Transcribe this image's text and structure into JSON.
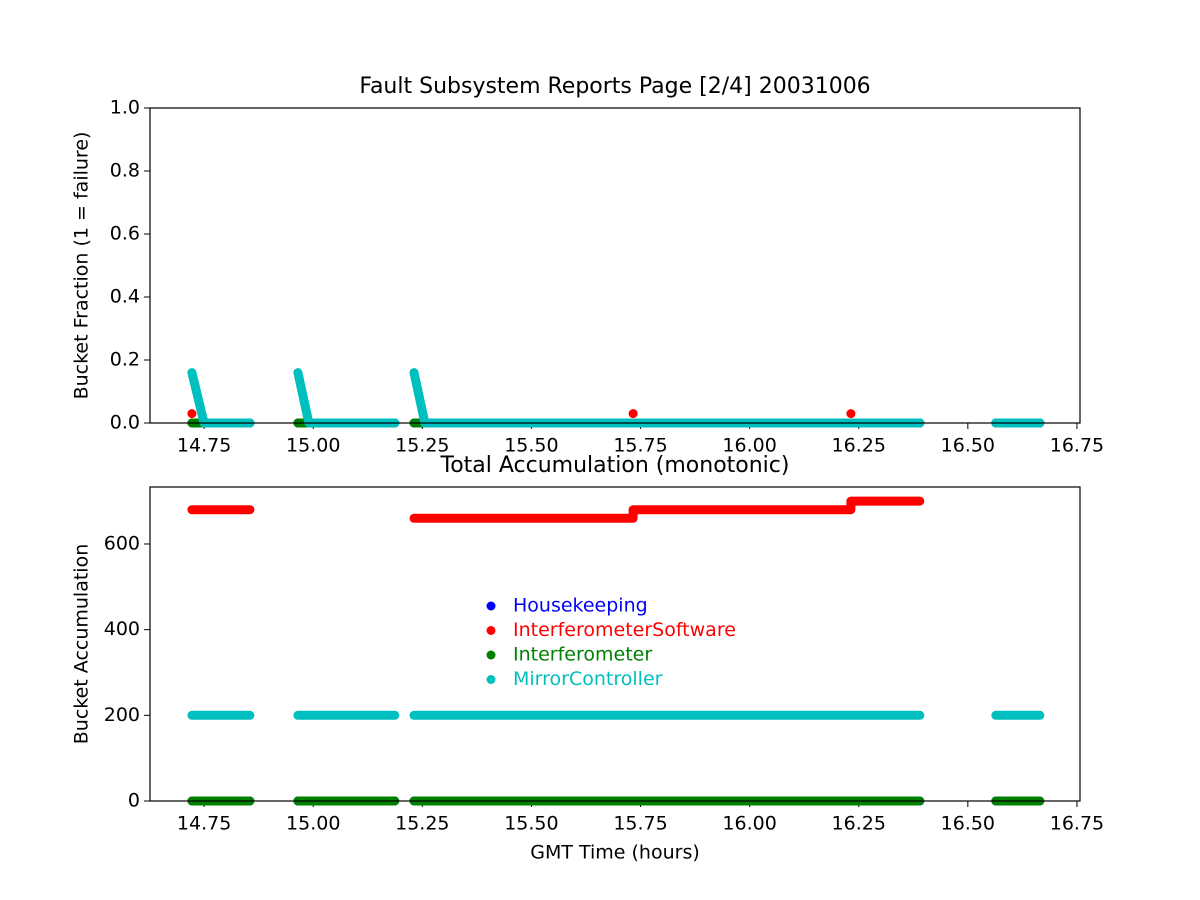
{
  "chart_data": [
    {
      "type": "line",
      "title": "Fault Subsystem Reports Page [2/4] 20031006",
      "ylabel": "Bucket Fraction (1 = failure)",
      "xlim": [
        14.626,
        16.757
      ],
      "ylim": [
        0,
        1
      ],
      "xticks": [
        14.75,
        {
          "value": 15,
          "label": "15.00"
        },
        15.25,
        {
          "value": 15.5,
          "label": "15.50"
        },
        15.75,
        {
          "value": 16,
          "label": "16.00"
        },
        16.25,
        {
          "value": 16.5,
          "label": "16.50"
        },
        16.75
      ],
      "yticks": [
        {
          "value": 0,
          "label": "0.0"
        },
        {
          "value": 0.2,
          "label": "0.2"
        },
        {
          "value": 0.4,
          "label": "0.4"
        },
        {
          "value": 0.6,
          "label": "0.6"
        },
        {
          "value": 0.8,
          "label": "0.8"
        },
        {
          "value": 1,
          "label": "1.0"
        }
      ],
      "series": [
        {
          "color": "#0000ff",
          "x": [
            14.722,
            14.855,
            14.91,
            14.965,
            15.187,
            15.21,
            15.231,
            16.39,
            16.48,
            16.564,
            16.665
          ],
          "values": [
            0,
            0,
            null,
            0,
            0,
            null,
            0,
            0,
            null,
            0,
            0
          ]
        },
        {
          "color": "#ff0000",
          "x": [
            14.722,
            15.0,
            15.733,
            16.0,
            16.232
          ],
          "values": [
            0.03,
            null,
            0.03,
            null,
            0.03
          ]
        },
        {
          "color": "#008000",
          "x": [
            14.722,
            14.855,
            14.91,
            14.965,
            15.187,
            15.21,
            15.231,
            16.39,
            16.48,
            16.564,
            16.665
          ],
          "values": [
            0,
            0,
            null,
            0,
            0,
            null,
            0,
            0,
            null,
            0,
            0
          ]
        },
        {
          "color": "#00bfbf",
          "x": [
            14.722,
            14.75,
            14.855,
            14.91,
            14.965,
            14.99,
            15.187,
            15.21,
            15.231,
            15.256,
            16.39,
            16.48,
            16.564,
            16.665
          ],
          "values": [
            0.16,
            0,
            0,
            null,
            0.16,
            0,
            0,
            null,
            0.16,
            0,
            0,
            null,
            0,
            0
          ]
        }
      ]
    },
    {
      "type": "line",
      "title": "Total Accumulation (monotonic)",
      "ylabel": "Bucket Accumulation",
      "xlabel": "GMT Time (hours)",
      "xlim": [
        14.626,
        16.757
      ],
      "ylim": [
        0,
        733
      ],
      "xticks": [
        14.75,
        {
          "value": 15,
          "label": "15.00"
        },
        15.25,
        {
          "value": 15.5,
          "label": "15.50"
        },
        15.75,
        {
          "value": 16,
          "label": "16.00"
        },
        16.25,
        {
          "value": 16.5,
          "label": "16.50"
        },
        16.75
      ],
      "yticks": [
        0,
        200,
        400,
        600
      ],
      "legend": "center",
      "series": [
        {
          "name": "Housekeeping",
          "color": "#0000ff",
          "x": [
            14.722,
            14.855,
            14.91,
            14.965,
            15.187,
            15.21,
            15.231,
            16.39,
            16.48,
            16.564,
            16.665
          ],
          "values": [
            0,
            0,
            null,
            0,
            0,
            null,
            0,
            0,
            null,
            0,
            0
          ]
        },
        {
          "name": "InterferometerSoftware",
          "color": "#ff0000",
          "x": [
            14.722,
            14.855,
            15.0,
            15.231,
            15.733,
            15.733,
            16.232,
            16.232,
            16.39
          ],
          "values": [
            680,
            680,
            null,
            660,
            660,
            680,
            680,
            700,
            700
          ]
        },
        {
          "name": "Interferometer",
          "color": "#008000",
          "x": [
            14.722,
            14.855,
            14.91,
            14.965,
            15.187,
            15.21,
            15.231,
            16.39,
            16.48,
            16.564,
            16.665
          ],
          "values": [
            0,
            0,
            null,
            0,
            0,
            null,
            0,
            0,
            null,
            0,
            0
          ]
        },
        {
          "name": "MirrorController",
          "color": "#00bfbf",
          "x": [
            14.722,
            14.855,
            14.91,
            14.965,
            15.187,
            15.21,
            15.231,
            16.39,
            16.48,
            16.564,
            16.665
          ],
          "values": [
            200,
            200,
            null,
            200,
            200,
            null,
            200,
            200,
            null,
            200,
            200
          ]
        }
      ]
    }
  ]
}
